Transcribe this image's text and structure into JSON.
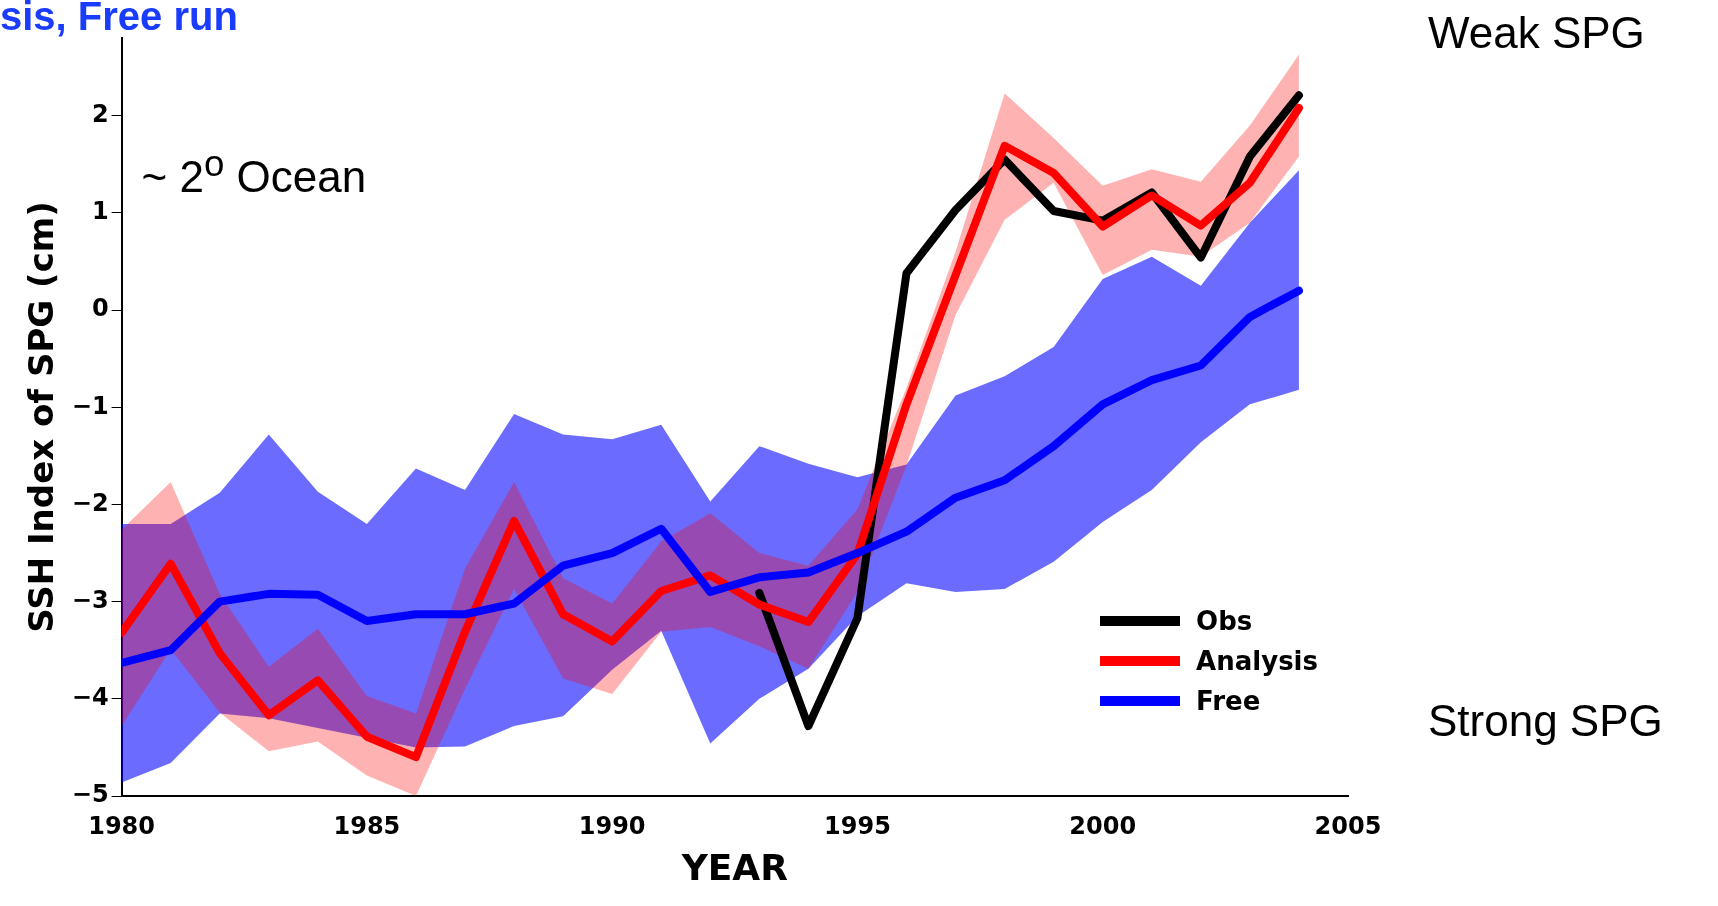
{
  "chart_data": {
    "type": "line",
    "title": "sis, Free run",
    "xlabel": "YEAR",
    "ylabel": "SSH Index of SPG (cm)",
    "x": [
      1980,
      1981,
      1982,
      1983,
      1984,
      1985,
      1986,
      1987,
      1988,
      1989,
      1990,
      1991,
      1992,
      1993,
      1994,
      1995,
      1996,
      1997,
      1998,
      1999,
      2000,
      2001,
      2002,
      2003,
      2004
    ],
    "series": [
      {
        "name": "Obs",
        "color": "#000000",
        "values": [
          null,
          null,
          null,
          null,
          null,
          null,
          null,
          null,
          null,
          null,
          null,
          null,
          null,
          -2.91,
          -4.28,
          -3.17,
          0.38,
          1.03,
          1.55,
          1.02,
          0.92,
          1.21,
          0.54,
          1.58,
          2.21
        ]
      },
      {
        "name": "Analysis",
        "color": "#ff0000",
        "values": [
          -3.32,
          -2.61,
          -3.53,
          -4.17,
          -3.81,
          -4.39,
          -4.6,
          -3.31,
          -2.17,
          -3.13,
          -3.41,
          -2.89,
          -2.73,
          -3.03,
          -3.21,
          -2.51,
          -0.97,
          0.36,
          1.69,
          1.41,
          0.86,
          1.18,
          0.87,
          1.31,
          2.08
        ],
        "lower": [
          -4.28,
          -3.49,
          -4.14,
          -4.54,
          -4.44,
          -4.79,
          -5,
          -3.9,
          -2.87,
          -3.79,
          -3.95,
          -3.31,
          -3.26,
          -3.46,
          -3.69,
          -2.9,
          -1.6,
          -0.05,
          0.93,
          1.31,
          0.36,
          0.62,
          0.55,
          0.9,
          1.58
        ],
        "upper": [
          -2.26,
          -1.77,
          -2.92,
          -3.67,
          -3.28,
          -3.97,
          -4.15,
          -2.66,
          -1.77,
          -2.76,
          -3.02,
          -2.38,
          -2.09,
          -2.5,
          -2.63,
          -2.05,
          -0.8,
          0.6,
          2.23,
          1.77,
          1.28,
          1.45,
          1.32,
          1.9,
          2.63
        ]
      },
      {
        "name": "Free",
        "color": "#0000ff",
        "values": [
          -3.63,
          -3.5,
          -3.0,
          -2.92,
          -2.93,
          -3.2,
          -3.13,
          -3.13,
          -3.02,
          -2.63,
          -2.5,
          -2.25,
          -2.9,
          -2.75,
          -2.7,
          -2.5,
          -2.28,
          -1.93,
          -1.75,
          -1.4,
          -0.97,
          -0.72,
          -0.57,
          -0.07,
          0.2
        ],
        "lower": [
          -4.86,
          -4.66,
          -4.15,
          -4.2,
          -4.3,
          -4.4,
          -4.5,
          -4.49,
          -4.28,
          -4.18,
          -3.7,
          -3.3,
          -4.46,
          -4.0,
          -3.69,
          -3.15,
          -2.81,
          -2.9,
          -2.87,
          -2.59,
          -2.18,
          -1.85,
          -1.36,
          -0.97,
          -0.82
        ],
        "upper": [
          -2.2,
          -2.2,
          -1.88,
          -1.28,
          -1.87,
          -2.2,
          -1.63,
          -1.85,
          -1.07,
          -1.28,
          -1.33,
          -1.18,
          -1.97,
          -1.4,
          -1.58,
          -1.72,
          -1.59,
          -0.88,
          -0.68,
          -0.38,
          0.32,
          0.55,
          0.25,
          0.9,
          1.44
        ]
      }
    ],
    "xlim": [
      1980,
      2005
    ],
    "xticks": [
      1980,
      1985,
      1990,
      1995,
      2000,
      2005
    ],
    "ylim": [
      -5,
      2.8
    ],
    "yticks": [
      -5,
      -4,
      -3,
      -2,
      -1,
      0,
      1,
      2
    ],
    "grid": false,
    "legend": "bottom right",
    "marker": "none",
    "line_style": "solid",
    "annotations": [
      "Weak SPG",
      "Strong SPG",
      "~ 2$^{o}$ Ocean"
    ]
  }
}
